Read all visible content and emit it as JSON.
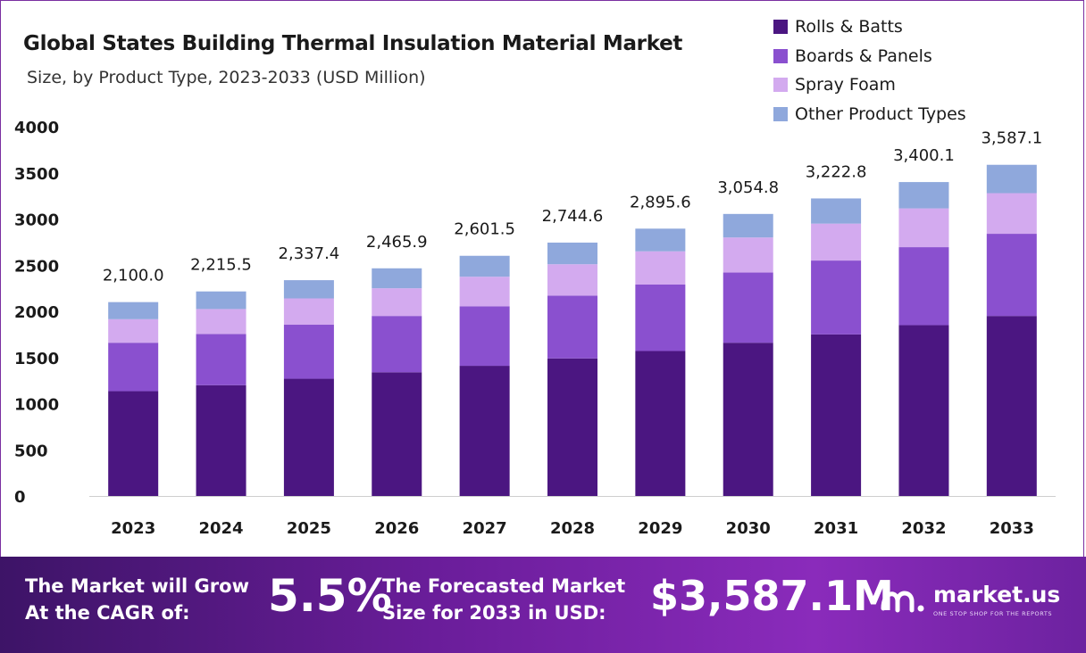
{
  "chart_data": {
    "type": "bar",
    "stacked": true,
    "title": "Global States Building Thermal Insulation Material Market",
    "subtitle": "Size, by Product Type, 2023-2033 (USD Million)",
    "categories": [
      "2023",
      "2024",
      "2025",
      "2026",
      "2027",
      "2028",
      "2029",
      "2030",
      "2031",
      "2032",
      "2033"
    ],
    "series": [
      {
        "name": "Rolls & Batts",
        "color": "#4b1681",
        "values": [
          1135,
          1200,
          1270,
          1340,
          1410,
          1490,
          1570,
          1660,
          1750,
          1850,
          1950
        ]
      },
      {
        "name": "Boards & Panels",
        "color": "#8a50cf",
        "values": [
          525,
          555,
          585,
          610,
          645,
          680,
          720,
          760,
          800,
          845,
          890
        ]
      },
      {
        "name": "Spray Foam",
        "color": "#d3aaef",
        "values": [
          255,
          270,
          285,
          300,
          320,
          340,
          360,
          380,
          400,
          420,
          440
        ]
      },
      {
        "name": "Other Product Types",
        "color": "#8fa8dc",
        "values": [
          185,
          190.5,
          197.4,
          215.9,
          226.5,
          234.6,
          245.6,
          254.8,
          272.8,
          285.1,
          307.1
        ]
      }
    ],
    "totals": [
      "2,100.0",
      "2,215.5",
      "2,337.4",
      "2,465.9",
      "2,601.5",
      "2,744.6",
      "2,895.6",
      "3,054.8",
      "3,222.8",
      "3,400.1",
      "3,587.1"
    ],
    "yticks": [
      "0",
      "500",
      "1000",
      "1500",
      "2000",
      "2500",
      "3000",
      "3500",
      "4000"
    ],
    "ylim": [
      0,
      4000
    ],
    "xlabel": "",
    "ylabel": "",
    "legend_position": "top-right"
  },
  "footer": {
    "cagr_label": "The Market will Grow At the CAGR of:",
    "cagr_value": "5.5%",
    "size_label": "The Forecasted Market Size for 2033 in USD:",
    "size_value": "$3,587.1M",
    "brand_name": "market.us",
    "brand_tagline": "ONE STOP SHOP FOR THE REPORTS"
  }
}
